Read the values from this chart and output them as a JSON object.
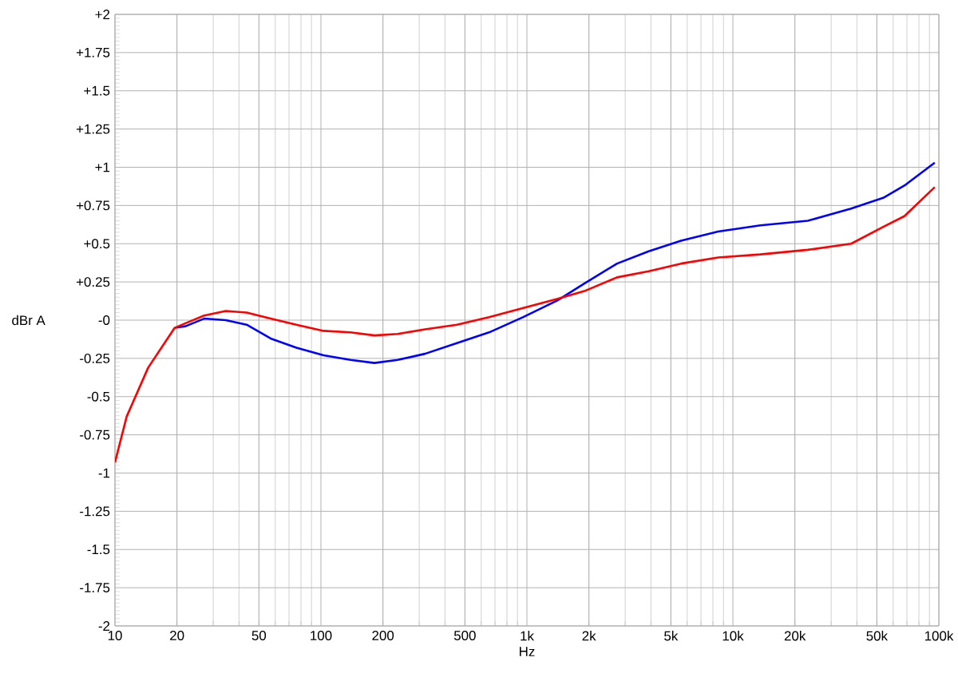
{
  "chart_data": {
    "type": "line",
    "xlabel": "Hz",
    "ylabel": "dBr A",
    "log": "x",
    "grid": true,
    "marker": "none",
    "line_style": "solid",
    "xlim": [
      10,
      100000
    ],
    "ylim": [
      -2,
      2
    ],
    "xticks": [
      10,
      20,
      50,
      100,
      200,
      500,
      {
        "value": 1000,
        "label": "1k"
      },
      {
        "value": 2000,
        "label": "2k"
      },
      {
        "value": 5000,
        "label": "5k"
      },
      {
        "value": 10000,
        "label": "10k"
      },
      {
        "value": 20000,
        "label": "20k"
      },
      {
        "value": 50000,
        "label": "50k"
      },
      {
        "value": 100000,
        "label": "100k"
      }
    ],
    "yticks": [
      {
        "value": 2,
        "label": "+2"
      },
      {
        "value": 1.75,
        "label": "+1.75"
      },
      {
        "value": 1.5,
        "label": "+1.5"
      },
      {
        "value": 1.25,
        "label": "+1.25"
      },
      {
        "value": 1,
        "label": "+1"
      },
      {
        "value": 0.75,
        "label": "+0.75"
      },
      {
        "value": 0.5,
        "label": "+0.5"
      },
      {
        "value": 0.25,
        "label": "+0.25"
      },
      {
        "value": 0,
        "label": "-0"
      },
      -0.25,
      -0.5,
      -0.75,
      -1,
      -1.25,
      -1.5,
      -1.75,
      -2
    ],
    "series": [
      {
        "color": "#0000ff",
        "x": [
          19.5,
          22,
          27.1,
          34.5,
          43.6,
          57,
          76,
          103,
          139,
          182,
          236,
          320,
          457,
          655,
          960,
          1410,
          1900,
          2740,
          3900,
          5600,
          8480,
          13600,
          23100,
          37500,
          53700,
          68000,
          95500
        ],
        "values": [
          -0.05,
          -0.04,
          0.01,
          0,
          -0.03,
          -0.12,
          -0.18,
          -0.23,
          -0.26,
          -0.28,
          -0.26,
          -0.22,
          -0.15,
          -0.08,
          0.02,
          0.13,
          0.24,
          0.37,
          0.45,
          0.52,
          0.58,
          0.62,
          0.65,
          0.73,
          0.8,
          0.88,
          1.03
        ]
      },
      {
        "color": "#ff0000",
        "x": [
          10,
          11.4,
          14.5,
          19.5,
          22,
          27.1,
          34.5,
          43.6,
          57,
          76,
          103,
          139,
          182,
          236,
          320,
          457,
          655,
          960,
          1410,
          1900,
          2740,
          3900,
          5600,
          8480,
          13600,
          23100,
          37500,
          53700,
          68000,
          95500
        ],
        "values": [
          -0.93,
          -0.63,
          -0.31,
          -0.05,
          -0.02,
          0.03,
          0.06,
          0.05,
          0.01,
          -0.03,
          -0.07,
          -0.08,
          -0.1,
          -0.09,
          -0.06,
          -0.03,
          0.02,
          0.08,
          0.14,
          0.19,
          0.28,
          0.32,
          0.37,
          0.41,
          0.43,
          0.46,
          0.5,
          0.61,
          0.68,
          0.87
        ]
      }
    ]
  }
}
